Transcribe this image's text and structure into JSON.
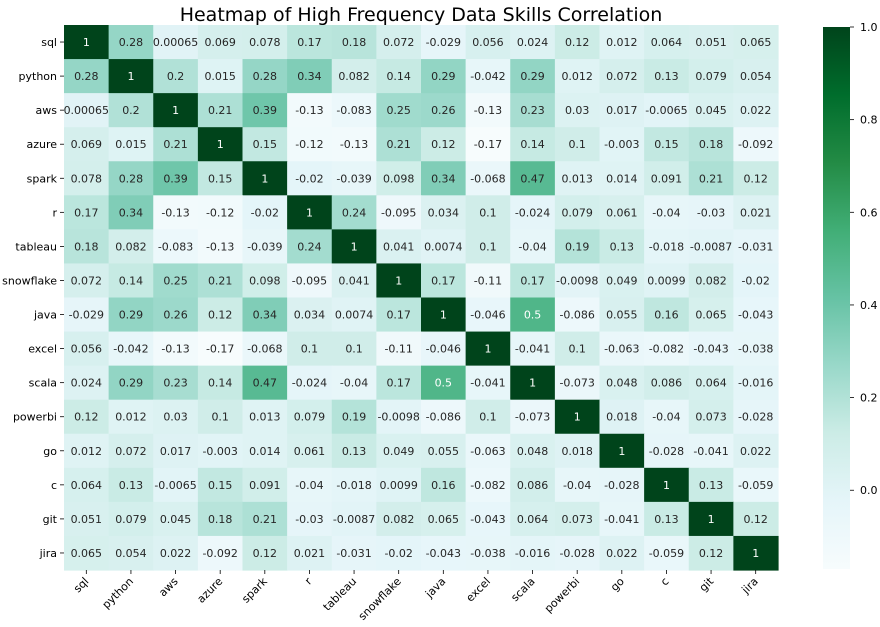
{
  "chart_data": {
    "type": "heatmap",
    "title": "Heatmap of High Frequency Data Skills Correlation",
    "labels": [
      "sql",
      "python",
      "aws",
      "azure",
      "spark",
      "r",
      "tableau",
      "snowflake",
      "java",
      "excel",
      "scala",
      "powerbi",
      "go",
      "c",
      "git",
      "jira"
    ],
    "cell_labels": [
      [
        "1",
        "0.28",
        "0.00065",
        "0.069",
        "0.078",
        "0.17",
        "0.18",
        "0.072",
        "-0.029",
        "0.056",
        "0.024",
        "0.12",
        "0.012",
        "0.064",
        "0.051",
        "0.065"
      ],
      [
        "0.28",
        "1",
        "0.2",
        "0.015",
        "0.28",
        "0.34",
        "0.082",
        "0.14",
        "0.29",
        "-0.042",
        "0.29",
        "0.012",
        "0.072",
        "0.13",
        "0.079",
        "0.054"
      ],
      [
        "0.00065",
        "0.2",
        "1",
        "0.21",
        "0.39",
        "-0.13",
        "-0.083",
        "0.25",
        "0.26",
        "-0.13",
        "0.23",
        "0.03",
        "0.017",
        "-0.0065",
        "0.045",
        "0.022"
      ],
      [
        "0.069",
        "0.015",
        "0.21",
        "1",
        "0.15",
        "-0.12",
        "-0.13",
        "0.21",
        "0.12",
        "-0.17",
        "0.14",
        "0.1",
        "-0.003",
        "0.15",
        "0.18",
        "-0.092"
      ],
      [
        "0.078",
        "0.28",
        "0.39",
        "0.15",
        "1",
        "-0.02",
        "-0.039",
        "0.098",
        "0.34",
        "-0.068",
        "0.47",
        "0.013",
        "0.014",
        "0.091",
        "0.21",
        "0.12"
      ],
      [
        "0.17",
        "0.34",
        "-0.13",
        "-0.12",
        "-0.02",
        "1",
        "0.24",
        "-0.095",
        "0.034",
        "0.1",
        "-0.024",
        "0.079",
        "0.061",
        "-0.04",
        "-0.03",
        "0.021"
      ],
      [
        "0.18",
        "0.082",
        "-0.083",
        "-0.13",
        "-0.039",
        "0.24",
        "1",
        "0.041",
        "0.0074",
        "0.1",
        "-0.04",
        "0.19",
        "0.13",
        "-0.018",
        "-0.0087",
        "-0.031"
      ],
      [
        "0.072",
        "0.14",
        "0.25",
        "0.21",
        "0.098",
        "-0.095",
        "0.041",
        "1",
        "0.17",
        "-0.11",
        "0.17",
        "-0.0098",
        "0.049",
        "0.0099",
        "0.082",
        "-0.02"
      ],
      [
        "-0.029",
        "0.29",
        "0.26",
        "0.12",
        "0.34",
        "0.034",
        "0.0074",
        "0.17",
        "1",
        "-0.046",
        "0.5",
        "-0.086",
        "0.055",
        "0.16",
        "0.065",
        "-0.043"
      ],
      [
        "0.056",
        "-0.042",
        "-0.13",
        "-0.17",
        "-0.068",
        "0.1",
        "0.1",
        "-0.11",
        "-0.046",
        "1",
        "-0.041",
        "0.1",
        "-0.063",
        "-0.082",
        "-0.043",
        "-0.038"
      ],
      [
        "0.024",
        "0.29",
        "0.23",
        "0.14",
        "0.47",
        "-0.024",
        "-0.04",
        "0.17",
        "0.5",
        "-0.041",
        "1",
        "-0.073",
        "0.048",
        "0.086",
        "0.064",
        "-0.016"
      ],
      [
        "0.12",
        "0.012",
        "0.03",
        "0.1",
        "0.013",
        "0.079",
        "0.19",
        "-0.0098",
        "-0.086",
        "0.1",
        "-0.073",
        "1",
        "0.018",
        "-0.04",
        "0.073",
        "-0.028"
      ],
      [
        "0.012",
        "0.072",
        "0.017",
        "-0.003",
        "0.014",
        "0.061",
        "0.13",
        "0.049",
        "0.055",
        "-0.063",
        "0.048",
        "0.018",
        "1",
        "-0.028",
        "-0.041",
        "0.022"
      ],
      [
        "0.064",
        "0.13",
        "-0.0065",
        "0.15",
        "0.091",
        "-0.04",
        "-0.018",
        "0.0099",
        "0.16",
        "-0.082",
        "0.086",
        "-0.04",
        "-0.028",
        "1",
        "0.13",
        "-0.059"
      ],
      [
        "0.051",
        "0.079",
        "0.045",
        "0.18",
        "0.21",
        "-0.03",
        "-0.0087",
        "0.082",
        "0.065",
        "-0.043",
        "0.064",
        "0.073",
        "-0.041",
        "0.13",
        "1",
        "0.12"
      ],
      [
        "0.065",
        "0.054",
        "0.022",
        "-0.092",
        "0.12",
        "0.021",
        "-0.031",
        "-0.02",
        "-0.043",
        "-0.038",
        "-0.016",
        "-0.028",
        "0.022",
        "-0.059",
        "0.12",
        "1"
      ]
    ],
    "colorbar": {
      "min": -0.17,
      "max": 1.0,
      "ticks": [
        "0.0",
        "0.2",
        "0.4",
        "0.6",
        "0.8",
        "1.0"
      ]
    },
    "colormap": [
      "#f7fcfd",
      "#e5f5f9",
      "#ccece6",
      "#99d8c9",
      "#66c2a4",
      "#41ae76",
      "#238b45",
      "#006d2c",
      "#00441b"
    ]
  }
}
